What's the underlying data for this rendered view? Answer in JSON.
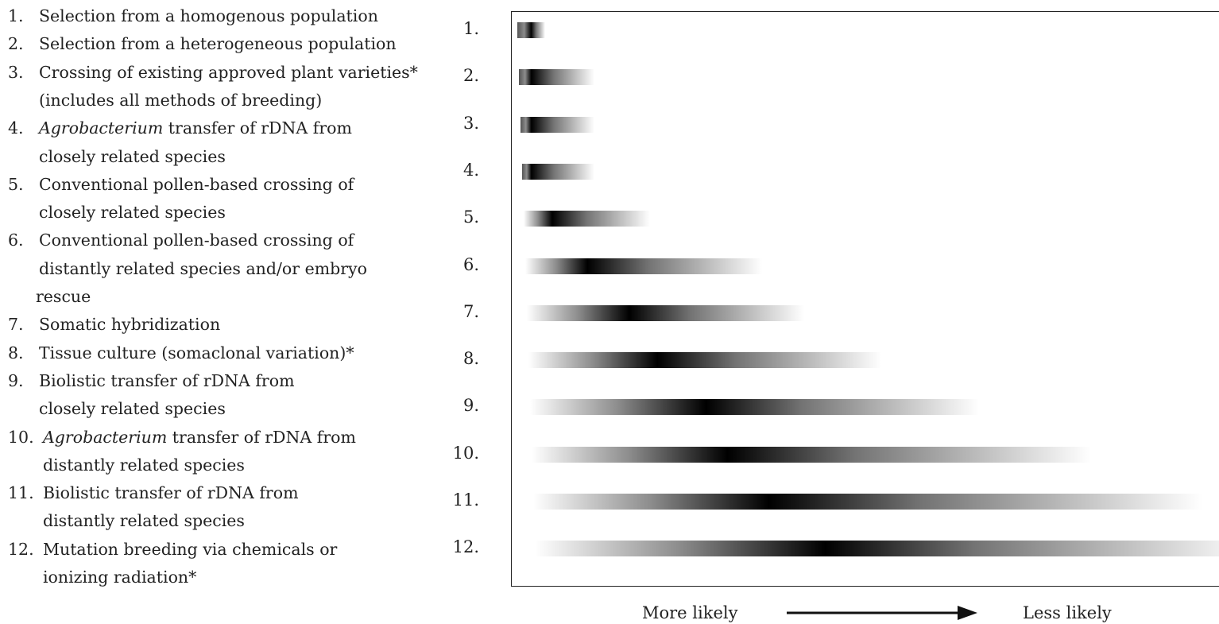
{
  "legend": {
    "items": [
      {
        "num": "1.",
        "lines": [
          "Selection from a homogenous population"
        ]
      },
      {
        "num": "2.",
        "lines": [
          "Selection from a heterogeneous population"
        ]
      },
      {
        "num": "3.",
        "lines": [
          "Crossing of existing approved plant varieties*",
          "(includes all methods of breeding)"
        ]
      },
      {
        "num": "4.",
        "italic": "Agrobacterium",
        "lines": [
          " transfer of rDNA from",
          "closely related species"
        ]
      },
      {
        "num": "5.",
        "lines": [
          "Conventional pollen-based crossing of",
          "closely related species"
        ]
      },
      {
        "num": "6.",
        "lines": [
          "Conventional pollen-based crossing of",
          "distantly related species and/or embryo",
          "rescue"
        ]
      },
      {
        "num": "7.",
        "lines": [
          "Somatic hybridization"
        ]
      },
      {
        "num": "8.",
        "lines": [
          "Tissue culture (somaclonal variation)*"
        ]
      },
      {
        "num": "9.",
        "lines": [
          "Biolistic transfer of rDNA from",
          "closely related species"
        ]
      },
      {
        "num": "10.",
        "italic": "Agrobacterium",
        "lines": [
          " transfer of rDNA from",
          "distantly related species"
        ]
      },
      {
        "num": "11.",
        "lines": [
          "Biolistic transfer of rDNA from",
          "distantly related species"
        ]
      },
      {
        "num": "12.",
        "lines": [
          "Mutation breeding via chemicals or",
          "ionizing radiation*"
        ]
      }
    ]
  },
  "rows": [
    {
      "label": "1.",
      "start": 0.0,
      "peak": 0.02,
      "end": 0.04
    },
    {
      "label": "2.",
      "start": 0.0,
      "peak": 0.02,
      "end": 0.11
    },
    {
      "label": "3.",
      "start": 0.0,
      "peak": 0.02,
      "end": 0.11
    },
    {
      "label": "4.",
      "start": 0.0,
      "peak": 0.02,
      "end": 0.11
    },
    {
      "label": "5.",
      "start": 0.0,
      "peak": 0.05,
      "end": 0.19
    },
    {
      "label": "6.",
      "start": 0.0,
      "peak": 0.1,
      "end": 0.35
    },
    {
      "label": "7.",
      "start": 0.0,
      "peak": 0.16,
      "end": 0.41
    },
    {
      "label": "8.",
      "start": 0.0,
      "peak": 0.2,
      "end": 0.52
    },
    {
      "label": "9.",
      "start": 0.0,
      "peak": 0.27,
      "end": 0.66
    },
    {
      "label": "10.",
      "start": 0.0,
      "peak": 0.3,
      "end": 0.82
    },
    {
      "label": "11.",
      "start": 0.0,
      "peak": 0.36,
      "end": 0.98
    },
    {
      "label": "12.",
      "start": 0.0,
      "peak": 0.44,
      "end": 1.05
    }
  ],
  "axis": {
    "left_label": "More likely",
    "right_label": "Less likely"
  }
}
